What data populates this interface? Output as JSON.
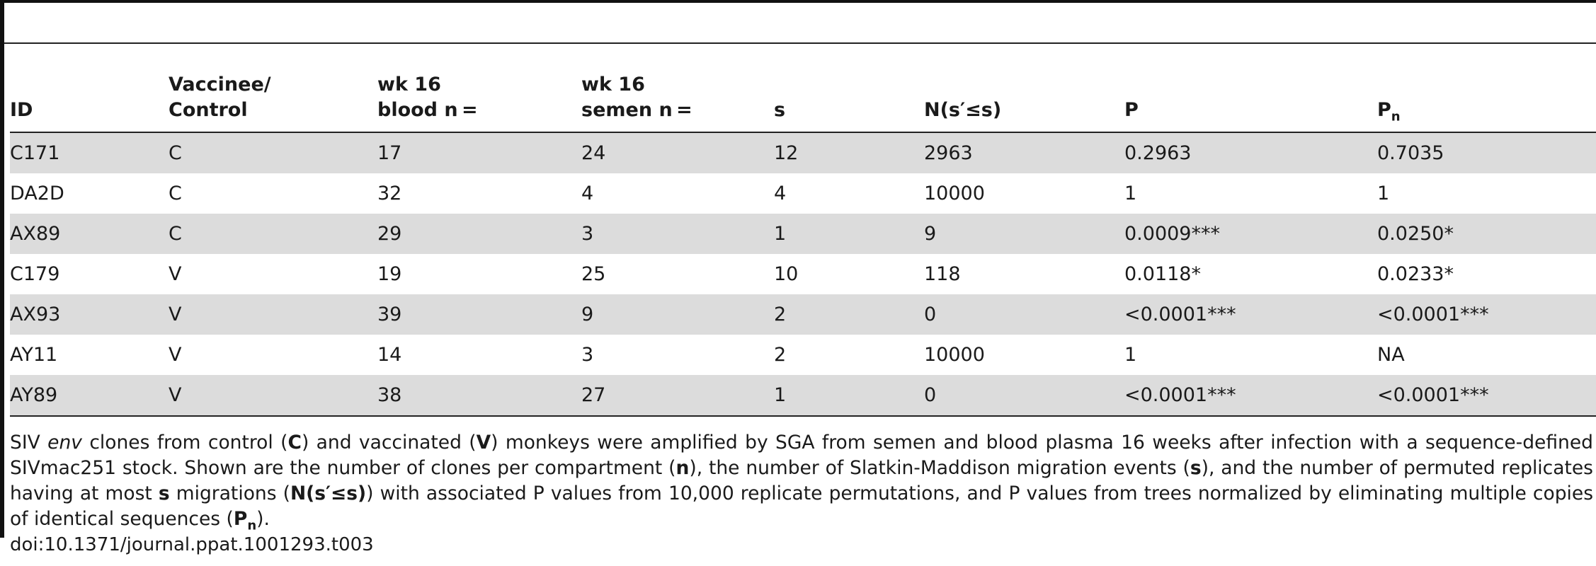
{
  "table": {
    "headers": [
      {
        "line1": "",
        "line2": "ID"
      },
      {
        "line1": "Vaccinee/",
        "line2": "Control"
      },
      {
        "line1": "wk 16",
        "line2": "blood n ="
      },
      {
        "line1": "wk 16",
        "line2": "semen n ="
      },
      {
        "line1": "",
        "line2": "s"
      },
      {
        "line1": "",
        "line2": "N(s′≤s)"
      },
      {
        "line1": "",
        "line2": "P"
      },
      {
        "line1": "",
        "line2": "P",
        "sub": "n"
      }
    ],
    "rows": [
      [
        "C171",
        "C",
        "17",
        "24",
        "12",
        "2963",
        "0.2963",
        "0.7035"
      ],
      [
        "DA2D",
        "C",
        "32",
        "4",
        "4",
        "10000",
        "1",
        "1"
      ],
      [
        "AX89",
        "C",
        "29",
        "3",
        "1",
        "9",
        "0.0009***",
        "0.0250*"
      ],
      [
        "C179",
        "V",
        "19",
        "25",
        "10",
        "118",
        "0.0118*",
        "0.0233*"
      ],
      [
        "AX93",
        "V",
        "39",
        "9",
        "2",
        "0",
        "<0.0001***",
        "<0.0001***"
      ],
      [
        "AY11",
        "V",
        "14",
        "3",
        "2",
        "10000",
        "1",
        "NA"
      ],
      [
        "AY89",
        "V",
        "38",
        "27",
        "1",
        "0",
        "<0.0001***",
        "<0.0001***"
      ]
    ]
  },
  "caption": {
    "t1": "SIV ",
    "env": "env",
    "t2": " clones from control (",
    "C": "C",
    "t3": ") and vaccinated (",
    "V": "V",
    "t4": ") monkeys were amplified by SGA from semen and blood plasma 16 weeks after infection with a sequence-defined SIVmac251 stock. Shown are the number of clones per compartment (",
    "n": "n",
    "t5": "), the number of Slatkin-Maddison migration events (",
    "s": "s",
    "t6": "), and the number of permuted replicates having at most ",
    "s2": "s",
    "t7": " migrations (",
    "N": "N(s′≤s)",
    "t8": ") with associated P values from 10,000 replicate permutations, and P values from trees normalized by eliminating multiple copies of identical sequences (",
    "Pn": "P",
    "Pn_sub": "n",
    "t9": ")."
  },
  "doi": "doi:10.1371/journal.ppat.1001293.t003"
}
